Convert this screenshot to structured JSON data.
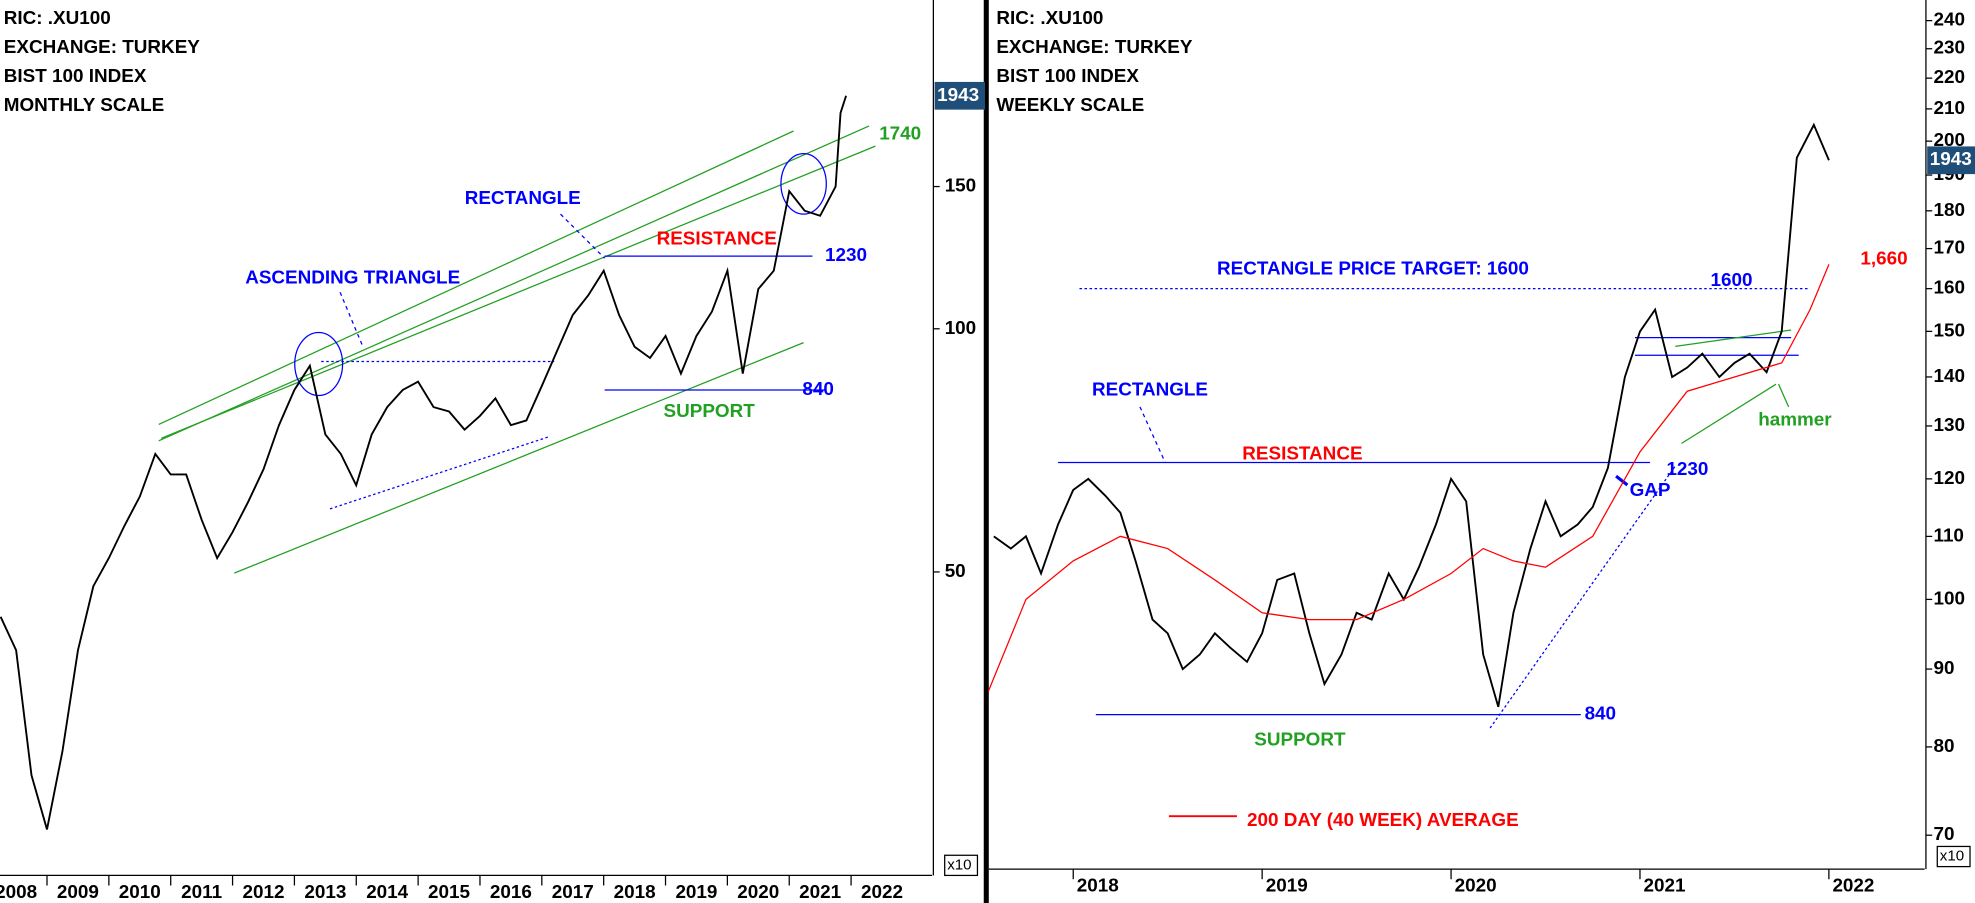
{
  "chart_data": [
    {
      "type": "line",
      "title_lines": [
        "RIC: .XU100",
        "EXCHANGE: TURKEY",
        "BIST 100 INDEX",
        "MONTHLY SCALE"
      ],
      "log_scale": true,
      "axis_multiplier": "x10",
      "xlim": [
        2008.24,
        2023.31
      ],
      "xticks": [
        2008,
        2009,
        2010,
        2011,
        2012,
        2013,
        2014,
        2015,
        2016,
        2017,
        2018,
        2019,
        2020,
        2021,
        2022
      ],
      "ylim": [
        21.05,
        255.3
      ],
      "yticks": [
        50,
        100,
        150
      ],
      "series": [
        {
          "color": "#000000",
          "x": [
            2008.25,
            2008.5,
            2008.75,
            2009,
            2009.25,
            2009.5,
            2009.75,
            2010,
            2010.25,
            2010.5,
            2010.75,
            2011,
            2011.25,
            2011.5,
            2011.75,
            2012,
            2012.25,
            2012.5,
            2012.75,
            2013,
            2013.25,
            2013.5,
            2013.75,
            2014,
            2014.25,
            2014.5,
            2014.75,
            2015,
            2015.25,
            2015.5,
            2015.75,
            2016,
            2016.25,
            2016.5,
            2016.75,
            2017,
            2017.25,
            2017.5,
            2017.75,
            2018,
            2018.25,
            2018.5,
            2018.75,
            2019,
            2019.25,
            2019.5,
            2019.75,
            2020,
            2020.25,
            2020.5,
            2020.75,
            2021,
            2021.25,
            2021.5,
            2021.75,
            2021.83,
            2021.92
          ],
          "values": [
            44,
            40,
            28,
            24,
            30,
            40,
            48,
            52,
            57,
            62,
            70,
            66,
            66,
            58,
            52,
            56,
            61,
            67,
            76,
            84,
            90,
            74,
            70,
            64,
            74,
            80,
            84,
            86,
            80,
            79,
            75,
            78,
            82,
            76,
            77,
            85,
            94,
            104,
            110,
            118,
            104,
            95,
            92,
            98,
            88,
            98,
            105,
            118,
            88,
            112,
            118,
            148,
            140,
            138,
            150,
            185,
            194.3
          ]
        }
      ],
      "last_price": {
        "value": 194.3,
        "label": "1943"
      },
      "levels": [
        {
          "value": 123,
          "label": "1230",
          "color": "#0000ff"
        },
        {
          "value": 84,
          "label": "840",
          "color": "#0000ff"
        },
        {
          "value": 174,
          "label": "1740",
          "color": "#22a022"
        }
      ],
      "annotations": [
        {
          "text": "ASCENDING TRIANGLE",
          "color": "#0000ff"
        },
        {
          "text": "RECTANGLE",
          "color": "#0000ff"
        },
        {
          "text": "RESISTANCE",
          "color": "#ff0000"
        },
        {
          "text": "SUPPORT",
          "color": "#22a022"
        }
      ]
    },
    {
      "type": "line",
      "title_lines": [
        "RIC: .XU100",
        "EXCHANGE: TURKEY",
        "BIST 100 INDEX",
        "WEEKLY SCALE"
      ],
      "log_scale": true,
      "axis_multiplier": "x10",
      "xlim": [
        2017.553,
        2022.507
      ],
      "xticks": [
        2018,
        2019,
        2020,
        2021,
        2022
      ],
      "ylim": [
        66.5,
        247.6
      ],
      "yticks": [
        70,
        80,
        90,
        100,
        110,
        120,
        130,
        140,
        150,
        160,
        170,
        180,
        190,
        200,
        210,
        220,
        230,
        240
      ],
      "series": [
        {
          "color": "#000000",
          "x": [
            2017.58,
            2017.67,
            2017.75,
            2017.83,
            2017.92,
            2018,
            2018.08,
            2018.17,
            2018.25,
            2018.33,
            2018.42,
            2018.5,
            2018.58,
            2018.67,
            2018.75,
            2018.83,
            2018.92,
            2019,
            2019.08,
            2019.17,
            2019.25,
            2019.33,
            2019.42,
            2019.5,
            2019.58,
            2019.67,
            2019.75,
            2019.83,
            2019.92,
            2020,
            2020.08,
            2020.17,
            2020.25,
            2020.33,
            2020.42,
            2020.5,
            2020.58,
            2020.67,
            2020.75,
            2020.83,
            2020.92,
            2021,
            2021.08,
            2021.17,
            2021.25,
            2021.33,
            2021.42,
            2021.5,
            2021.58,
            2021.67,
            2021.75,
            2021.83,
            2021.92,
            2022
          ],
          "values": [
            110,
            108,
            110,
            104,
            112,
            118,
            120,
            117,
            114,
            106,
            97,
            95,
            90,
            92,
            95,
            93,
            91,
            95,
            103,
            104,
            95,
            88,
            92,
            98,
            97,
            104,
            100,
            105,
            112,
            120,
            116,
            92,
            85,
            98,
            108,
            116,
            110,
            112,
            115,
            122,
            140,
            150,
            155,
            140,
            142,
            145,
            140,
            143,
            145,
            141,
            150,
            195,
            205,
            194.3
          ]
        },
        {
          "name": "200 DAY (40 WEEK) AVERAGE",
          "color": "#ff0000",
          "x": [
            2017.55,
            2017.75,
            2018,
            2018.25,
            2018.5,
            2018.75,
            2019,
            2019.25,
            2019.5,
            2019.75,
            2020,
            2020.17,
            2020.33,
            2020.5,
            2020.75,
            2021,
            2021.25,
            2021.5,
            2021.75,
            2021.9,
            2022
          ],
          "values": [
            87,
            100,
            106,
            110,
            108,
            103,
            98,
            97,
            97,
            100,
            104,
            108,
            106,
            105,
            110,
            125,
            137,
            140,
            143,
            155,
            166
          ]
        }
      ],
      "last_price": {
        "value": 194.3,
        "label": "1943"
      },
      "levels": [
        {
          "value": 160,
          "label": "1600",
          "color": "#0000ff"
        },
        {
          "value": 123,
          "label": "1230",
          "color": "#0000ff"
        },
        {
          "value": 84,
          "label": "840",
          "color": "#0000ff"
        },
        {
          "value": 166,
          "label": "1,660",
          "color": "#ff0000"
        }
      ],
      "annotations": [
        {
          "text": "RECTANGLE PRICE TARGET: 1600",
          "color": "#0000ff"
        },
        {
          "text": "RECTANGLE",
          "color": "#0000ff"
        },
        {
          "text": "RESISTANCE",
          "color": "#ff0000"
        },
        {
          "text": "GAP",
          "color": "#0000ff"
        },
        {
          "text": "SUPPORT",
          "color": "#22a022"
        },
        {
          "text": "hammer",
          "color": "#22a022"
        }
      ]
    }
  ]
}
